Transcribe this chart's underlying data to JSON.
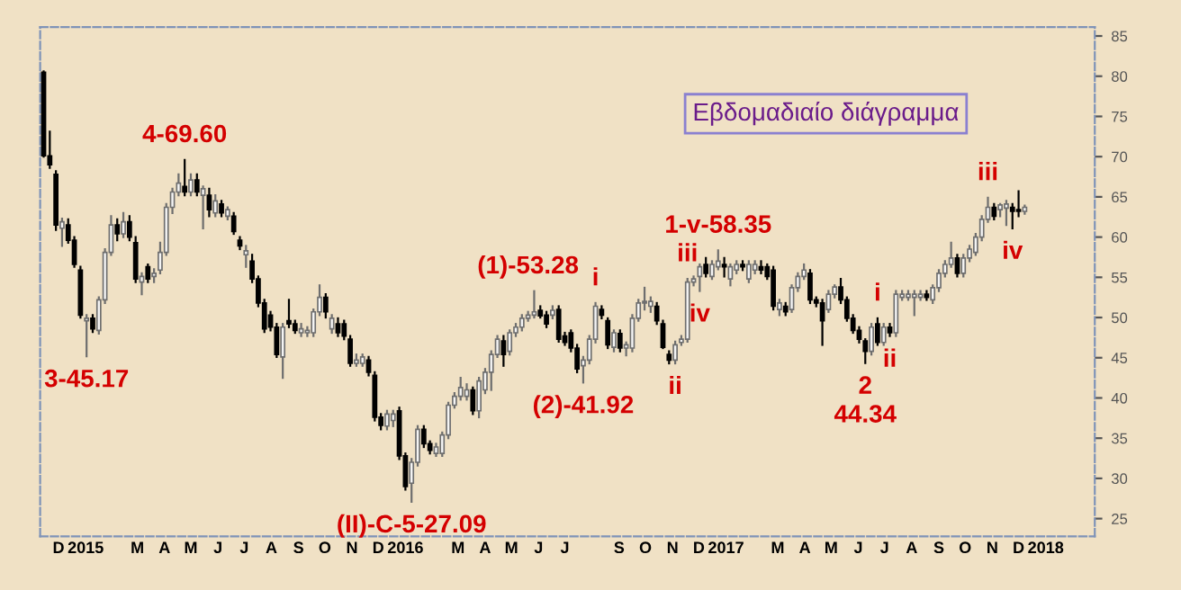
{
  "chart_data": {
    "type": "candlestick",
    "title": "Εβδομαδιαίο διάγραμμα",
    "x": [
      "2014-11-28",
      "2014-12-05",
      "2014-12-12",
      "2014-12-19",
      "2014-12-26",
      "2015-01-02",
      "2015-01-09",
      "2015-01-16",
      "2015-01-23",
      "2015-01-30",
      "2015-02-06",
      "2015-02-13",
      "2015-02-20",
      "2015-02-27",
      "2015-03-06",
      "2015-03-13",
      "2015-03-20",
      "2015-03-27",
      "2015-04-03",
      "2015-04-10",
      "2015-04-17",
      "2015-04-24",
      "2015-05-01",
      "2015-05-08",
      "2015-05-15",
      "2015-05-22",
      "2015-05-29",
      "2015-06-05",
      "2015-06-12",
      "2015-06-19",
      "2015-06-26",
      "2015-07-03",
      "2015-07-10",
      "2015-07-17",
      "2015-07-24",
      "2015-07-31",
      "2015-08-07",
      "2015-08-14",
      "2015-08-21",
      "2015-08-28",
      "2015-09-04",
      "2015-09-11",
      "2015-09-18",
      "2015-09-25",
      "2015-10-02",
      "2015-10-09",
      "2015-10-16",
      "2015-10-23",
      "2015-10-30",
      "2015-11-06",
      "2015-11-13",
      "2015-11-20",
      "2015-11-27",
      "2015-12-04",
      "2015-12-11",
      "2015-12-18",
      "2015-12-25",
      "2016-01-01",
      "2016-01-08",
      "2016-01-15",
      "2016-01-22",
      "2016-01-29",
      "2016-02-05",
      "2016-02-12",
      "2016-02-19",
      "2016-02-26",
      "2016-03-04",
      "2016-03-11",
      "2016-03-18",
      "2016-03-25",
      "2016-04-01",
      "2016-04-08",
      "2016-04-15",
      "2016-04-22",
      "2016-04-29",
      "2016-05-06",
      "2016-05-13",
      "2016-05-20",
      "2016-05-27",
      "2016-06-03",
      "2016-06-10",
      "2016-06-17",
      "2016-06-24",
      "2016-07-01",
      "2016-07-08",
      "2016-07-15",
      "2016-07-22",
      "2016-07-29",
      "2016-08-05",
      "2016-08-12",
      "2016-08-19",
      "2016-08-26",
      "2016-09-02",
      "2016-09-09",
      "2016-09-16",
      "2016-09-23",
      "2016-09-30",
      "2016-10-07",
      "2016-10-14",
      "2016-10-21",
      "2016-10-28",
      "2016-11-04",
      "2016-11-11",
      "2016-11-18",
      "2016-11-25",
      "2016-12-02",
      "2016-12-09",
      "2016-12-16",
      "2016-12-23",
      "2016-12-30",
      "2017-01-06",
      "2017-01-13",
      "2017-01-20",
      "2017-01-27",
      "2017-02-03",
      "2017-02-10",
      "2017-02-17",
      "2017-02-24",
      "2017-03-03",
      "2017-03-10",
      "2017-03-17",
      "2017-03-24",
      "2017-03-31",
      "2017-04-07",
      "2017-04-14",
      "2017-04-21",
      "2017-04-28",
      "2017-05-05",
      "2017-05-12",
      "2017-05-19",
      "2017-05-26",
      "2017-06-02",
      "2017-06-09",
      "2017-06-16",
      "2017-06-23",
      "2017-06-30",
      "2017-07-07",
      "2017-07-14",
      "2017-07-21",
      "2017-07-28",
      "2017-08-04",
      "2017-08-11",
      "2017-08-18",
      "2017-08-25",
      "2017-09-01",
      "2017-09-08",
      "2017-09-15",
      "2017-09-22",
      "2017-09-29",
      "2017-10-06",
      "2017-10-13",
      "2017-10-20",
      "2017-10-27",
      "2017-11-03",
      "2017-11-10",
      "2017-11-17",
      "2017-11-24",
      "2017-12-01",
      "2017-12-08",
      "2017-12-15",
      "2017-12-22"
    ],
    "ohlc": [
      [
        80.5,
        80.6,
        70.0,
        70.1
      ],
      [
        70.1,
        73.1,
        68.6,
        69.0
      ],
      [
        67.8,
        68.2,
        60.9,
        61.5
      ],
      [
        61.1,
        62.3,
        58.9,
        61.9
      ],
      [
        61.5,
        62.2,
        59.3,
        59.6
      ],
      [
        59.6,
        60.0,
        56.3,
        56.6
      ],
      [
        55.9,
        56.3,
        50.0,
        50.3
      ],
      [
        49.6,
        50.3,
        45.17,
        49.9
      ],
      [
        49.9,
        50.3,
        48.2,
        48.6
      ],
      [
        48.4,
        52.5,
        48.0,
        52.2
      ],
      [
        52.2,
        58.5,
        51.8,
        58.1
      ],
      [
        58.1,
        62.6,
        57.8,
        61.5
      ],
      [
        61.5,
        62.2,
        59.6,
        60.4
      ],
      [
        60.4,
        63.0,
        60.0,
        61.9
      ],
      [
        61.9,
        62.6,
        59.6,
        60.0
      ],
      [
        59.3,
        60.0,
        54.4,
        54.8
      ],
      [
        54.4,
        55.5,
        52.9,
        55.1
      ],
      [
        56.3,
        56.6,
        54.4,
        54.8
      ],
      [
        55.1,
        56.0,
        54.4,
        55.5
      ],
      [
        55.9,
        59.3,
        55.5,
        58.1
      ],
      [
        58.1,
        64.1,
        57.8,
        63.7
      ],
      [
        63.7,
        66.0,
        63.0,
        65.6
      ],
      [
        65.6,
        67.8,
        65.2,
        66.7
      ],
      [
        66.3,
        69.6,
        65.2,
        65.6
      ],
      [
        65.6,
        67.8,
        65.2,
        67.1
      ],
      [
        67.1,
        67.8,
        65.2,
        65.6
      ],
      [
        65.2,
        66.3,
        61.1,
        66.0
      ],
      [
        65.2,
        66.0,
        62.6,
        63.4
      ],
      [
        63.0,
        65.2,
        62.6,
        64.5
      ],
      [
        64.1,
        64.5,
        62.6,
        63.0
      ],
      [
        62.6,
        63.7,
        62.2,
        63.4
      ],
      [
        62.6,
        63.0,
        60.4,
        60.7
      ],
      [
        59.6,
        60.0,
        58.5,
        58.9
      ],
      [
        57.8,
        58.9,
        56.3,
        58.3
      ],
      [
        57.0,
        57.8,
        54.4,
        54.8
      ],
      [
        54.8,
        55.1,
        51.4,
        51.8
      ],
      [
        51.8,
        52.2,
        48.2,
        48.6
      ],
      [
        50.3,
        50.7,
        48.4,
        48.8
      ],
      [
        48.8,
        49.2,
        45.1,
        45.4
      ],
      [
        45.1,
        49.2,
        42.5,
        48.8
      ],
      [
        49.6,
        52.2,
        48.8,
        49.2
      ],
      [
        49.2,
        49.6,
        48.1,
        48.4
      ],
      [
        48.1,
        49.2,
        47.7,
        48.6
      ],
      [
        48.1,
        48.8,
        47.7,
        48.4
      ],
      [
        48.1,
        51.0,
        47.7,
        50.7
      ],
      [
        50.7,
        54.0,
        50.3,
        52.5
      ],
      [
        52.5,
        52.9,
        50.0,
        50.7
      ],
      [
        48.6,
        50.3,
        48.1,
        49.9
      ],
      [
        49.2,
        49.9,
        47.7,
        48.1
      ],
      [
        49.2,
        49.6,
        47.3,
        47.7
      ],
      [
        47.3,
        47.7,
        44.0,
        44.3
      ],
      [
        44.3,
        45.4,
        44.0,
        44.7
      ],
      [
        44.3,
        45.4,
        44.0,
        45.1
      ],
      [
        44.7,
        45.1,
        42.8,
        43.2
      ],
      [
        42.8,
        43.2,
        37.2,
        37.6
      ],
      [
        37.6,
        38.0,
        36.1,
        36.6
      ],
      [
        36.5,
        38.4,
        36.1,
        38.0
      ],
      [
        37.2,
        38.4,
        36.5,
        38.0
      ],
      [
        38.4,
        38.8,
        32.4,
        32.8
      ],
      [
        32.8,
        33.1,
        28.6,
        29.0
      ],
      [
        29.4,
        32.4,
        27.09,
        32.0
      ],
      [
        32.0,
        36.5,
        31.6,
        36.1
      ],
      [
        36.1,
        36.5,
        33.9,
        34.3
      ],
      [
        34.3,
        34.6,
        33.1,
        33.5
      ],
      [
        33.1,
        34.3,
        32.8,
        33.9
      ],
      [
        33.1,
        35.7,
        32.8,
        35.4
      ],
      [
        35.4,
        39.4,
        35.0,
        39.1
      ],
      [
        39.1,
        40.6,
        38.8,
        40.2
      ],
      [
        40.2,
        42.5,
        39.8,
        41.3
      ],
      [
        40.2,
        41.7,
        39.8,
        41.0
      ],
      [
        41.0,
        41.3,
        38.0,
        38.4
      ],
      [
        38.4,
        42.5,
        37.6,
        42.1
      ],
      [
        41.0,
        43.6,
        40.6,
        43.2
      ],
      [
        43.2,
        45.8,
        41.0,
        45.4
      ],
      [
        45.4,
        47.7,
        45.1,
        47.3
      ],
      [
        47.1,
        47.7,
        44.0,
        45.4
      ],
      [
        45.8,
        48.4,
        45.4,
        48.1
      ],
      [
        48.1,
        49.2,
        47.7,
        48.8
      ],
      [
        48.8,
        50.3,
        48.4,
        49.9
      ],
      [
        49.9,
        50.7,
        49.6,
        50.3
      ],
      [
        50.3,
        53.28,
        50.0,
        50.7
      ],
      [
        50.9,
        51.4,
        50.0,
        50.2
      ],
      [
        50.3,
        50.7,
        48.8,
        49.2
      ],
      [
        50.3,
        51.4,
        49.9,
        50.9
      ],
      [
        51.0,
        51.4,
        47.0,
        47.3
      ],
      [
        47.7,
        48.1,
        46.6,
        46.9
      ],
      [
        48.1,
        48.4,
        45.8,
        46.2
      ],
      [
        46.2,
        46.6,
        43.2,
        43.6
      ],
      [
        44.0,
        45.1,
        41.92,
        44.7
      ],
      [
        44.7,
        47.7,
        44.3,
        47.3
      ],
      [
        47.3,
        51.8,
        46.9,
        51.4
      ],
      [
        51.0,
        51.4,
        49.9,
        50.3
      ],
      [
        49.6,
        49.9,
        46.2,
        46.6
      ],
      [
        46.3,
        48.4,
        45.8,
        48.1
      ],
      [
        48.0,
        48.4,
        45.8,
        46.2
      ],
      [
        46.2,
        46.9,
        45.3,
        46.6
      ],
      [
        46.2,
        50.3,
        45.8,
        49.9
      ],
      [
        49.9,
        52.2,
        49.6,
        51.8
      ],
      [
        51.8,
        53.7,
        51.0,
        52.0
      ],
      [
        51.4,
        52.5,
        50.7,
        52.0
      ],
      [
        51.4,
        51.8,
        49.2,
        49.6
      ],
      [
        49.2,
        49.6,
        46.2,
        46.3
      ],
      [
        45.4,
        45.8,
        44.3,
        44.7
      ],
      [
        44.7,
        47.0,
        44.3,
        46.6
      ],
      [
        46.9,
        47.7,
        46.6,
        47.3
      ],
      [
        47.3,
        54.8,
        47.0,
        54.4
      ],
      [
        54.4,
        55.1,
        54.0,
        54.8
      ],
      [
        55.1,
        56.6,
        53.3,
        56.3
      ],
      [
        56.6,
        57.4,
        55.1,
        55.5
      ],
      [
        55.1,
        57.0,
        54.8,
        56.6
      ],
      [
        56.3,
        58.35,
        56.0,
        57.0
      ],
      [
        56.6,
        57.4,
        55.1,
        56.3
      ],
      [
        54.8,
        56.6,
        54.0,
        56.3
      ],
      [
        55.9,
        57.0,
        55.5,
        56.6
      ],
      [
        56.6,
        57.0,
        55.9,
        56.3
      ],
      [
        54.8,
        57.0,
        54.4,
        56.6
      ],
      [
        55.9,
        57.0,
        55.5,
        56.6
      ],
      [
        56.3,
        57.0,
        55.5,
        55.9
      ],
      [
        56.3,
        56.6,
        54.8,
        55.1
      ],
      [
        55.9,
        56.3,
        51.0,
        51.4
      ],
      [
        51.0,
        52.2,
        50.3,
        51.8
      ],
      [
        51.4,
        51.8,
        50.3,
        50.7
      ],
      [
        51.0,
        54.0,
        50.7,
        53.7
      ],
      [
        53.7,
        55.5,
        53.3,
        55.1
      ],
      [
        55.1,
        56.6,
        54.8,
        55.9
      ],
      [
        55.5,
        55.9,
        51.8,
        52.2
      ],
      [
        52.2,
        52.5,
        51.4,
        51.8
      ],
      [
        51.8,
        52.2,
        46.6,
        49.6
      ],
      [
        51.0,
        53.3,
        50.7,
        52.9
      ],
      [
        52.9,
        54.0,
        52.5,
        53.8
      ],
      [
        53.8,
        54.8,
        51.8,
        52.2
      ],
      [
        52.2,
        52.5,
        49.6,
        49.9
      ],
      [
        49.9,
        50.3,
        48.1,
        48.4
      ],
      [
        48.4,
        48.8,
        46.9,
        47.3
      ],
      [
        47.1,
        47.3,
        44.34,
        45.8
      ],
      [
        45.8,
        49.2,
        45.4,
        48.8
      ],
      [
        49.2,
        49.9,
        46.6,
        46.9
      ],
      [
        46.9,
        49.2,
        46.6,
        48.8
      ],
      [
        48.8,
        49.2,
        47.7,
        48.1
      ],
      [
        48.1,
        53.3,
        47.7,
        52.9
      ],
      [
        52.5,
        53.3,
        52.2,
        52.9
      ],
      [
        52.5,
        53.3,
        52.2,
        52.9
      ],
      [
        52.5,
        53.3,
        50.3,
        52.9
      ],
      [
        52.5,
        53.3,
        52.2,
        52.9
      ],
      [
        52.9,
        53.3,
        52.2,
        52.5
      ],
      [
        52.2,
        54.0,
        51.8,
        53.7
      ],
      [
        53.7,
        55.9,
        53.3,
        55.5
      ],
      [
        55.5,
        57.0,
        55.1,
        56.6
      ],
      [
        56.6,
        59.3,
        56.3,
        57.4
      ],
      [
        57.4,
        57.8,
        55.1,
        55.5
      ],
      [
        55.5,
        57.8,
        55.1,
        57.4
      ],
      [
        57.4,
        58.9,
        57.0,
        58.5
      ],
      [
        58.1,
        60.4,
        57.8,
        60.0
      ],
      [
        60.0,
        62.6,
        59.6,
        62.2
      ],
      [
        62.2,
        64.9,
        61.9,
        63.7
      ],
      [
        63.7,
        64.1,
        62.2,
        62.6
      ],
      [
        63.4,
        64.1,
        62.6,
        64.0
      ],
      [
        63.6,
        64.5,
        61.5,
        64.1
      ],
      [
        63.7,
        64.1,
        61.1,
        63.2
      ],
      [
        63.4,
        65.7,
        62.6,
        63.2
      ],
      [
        63.2,
        63.9,
        62.9,
        63.7
      ]
    ],
    "xlim": [
      "2014-11-24",
      "2018-03-12"
    ],
    "xticks": [
      {
        "value": "2014-12-15",
        "label": "D"
      },
      {
        "value": "2015-01-15",
        "label": "2015"
      },
      {
        "value": "2015-03-15",
        "label": "M"
      },
      {
        "value": "2015-04-15",
        "label": "A"
      },
      {
        "value": "2015-05-15",
        "label": "M"
      },
      {
        "value": "2015-06-15",
        "label": "J"
      },
      {
        "value": "2015-07-15",
        "label": "J"
      },
      {
        "value": "2015-08-15",
        "label": "A"
      },
      {
        "value": "2015-09-15",
        "label": "S"
      },
      {
        "value": "2015-10-15",
        "label": "O"
      },
      {
        "value": "2015-11-15",
        "label": "N"
      },
      {
        "value": "2015-12-15",
        "label": "D"
      },
      {
        "value": "2016-01-15",
        "label": "2016"
      },
      {
        "value": "2016-03-15",
        "label": "M"
      },
      {
        "value": "2016-04-15",
        "label": "A"
      },
      {
        "value": "2016-05-15",
        "label": "M"
      },
      {
        "value": "2016-06-15",
        "label": "J"
      },
      {
        "value": "2016-07-15",
        "label": "J"
      },
      {
        "value": "2016-09-15",
        "label": "S"
      },
      {
        "value": "2016-10-15",
        "label": "O"
      },
      {
        "value": "2016-11-15",
        "label": "N"
      },
      {
        "value": "2016-12-15",
        "label": "D"
      },
      {
        "value": "2017-01-15",
        "label": "2017"
      },
      {
        "value": "2017-03-15",
        "label": "M"
      },
      {
        "value": "2017-04-15",
        "label": "A"
      },
      {
        "value": "2017-05-15",
        "label": "M"
      },
      {
        "value": "2017-06-15",
        "label": "J"
      },
      {
        "value": "2017-07-15",
        "label": "J"
      },
      {
        "value": "2017-08-15",
        "label": "A"
      },
      {
        "value": "2017-09-15",
        "label": "S"
      },
      {
        "value": "2017-10-15",
        "label": "O"
      },
      {
        "value": "2017-11-15",
        "label": "N"
      },
      {
        "value": "2017-12-15",
        "label": "D"
      },
      {
        "value": "2018-01-15",
        "label": "2018"
      }
    ],
    "ylim": [
      22.8,
      86.1
    ],
    "yticks": [
      25,
      30,
      35,
      40,
      45,
      50,
      55,
      60,
      65,
      70,
      75,
      80,
      85
    ],
    "grid": false,
    "legend": false,
    "annotations": [
      {
        "text": "3-45.17",
        "x": "2015-01-16",
        "y": 45.17
      },
      {
        "text": "4-69.60",
        "x": "2015-05-08",
        "y": 69.6
      },
      {
        "text": "(II)-C-5-27.09",
        "x": "2016-01-22",
        "y": 27.09
      },
      {
        "text": "(1)-53.28",
        "x": "2016-06-03",
        "y": 53.28
      },
      {
        "text": "(2)-41.92",
        "x": "2016-08-05",
        "y": 41.92
      },
      {
        "text": "i",
        "x": "2016-08-19",
        "y": 51.8
      },
      {
        "text": "ii",
        "x": "2016-11-18",
        "y": 44.3
      },
      {
        "text": "iii",
        "x": "2016-12-02",
        "y": 54.8
      },
      {
        "text": "iv",
        "x": "2016-12-16",
        "y": 53.3
      },
      {
        "text": "1-v-58.35",
        "x": "2017-01-06",
        "y": 58.35
      },
      {
        "text": "2\n44.34",
        "x": "2017-06-23",
        "y": 44.34
      },
      {
        "text": "i",
        "x": "2017-07-07",
        "y": 49.9
      },
      {
        "text": "ii",
        "x": "2017-07-21",
        "y": 47.7
      },
      {
        "text": "iii",
        "x": "2017-11-10",
        "y": 64.9
      },
      {
        "text": "iv",
        "x": "2017-12-08",
        "y": 61.1
      }
    ]
  }
}
